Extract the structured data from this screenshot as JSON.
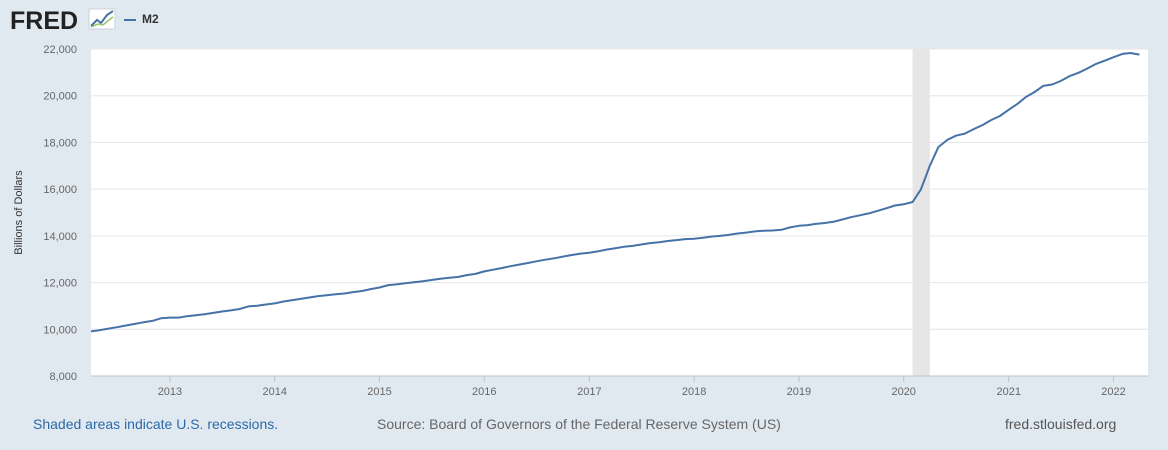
{
  "brand": {
    "name": "FRED",
    "logo_icon": "fred-trend-line-icon"
  },
  "legend": {
    "series_name": "M2",
    "color": "#4572a7"
  },
  "footer": {
    "recession_note": "Shaded areas indicate U.S. recessions.",
    "source": "Source: Board of Governors of the Federal Reserve System (US)",
    "site": "fred.stlouisfed.org"
  },
  "colors": {
    "background": "#e1e9f0",
    "plot_background": "#ffffff",
    "line": "#4572a7",
    "recession": "#e6e6e6"
  },
  "chart_data": {
    "type": "line",
    "title": "",
    "xlabel": "",
    "ylabel": "Billions of Dollars",
    "grid": true,
    "legend_position": "top-left",
    "xlim": [
      "2012-04-01",
      "2022-05-01"
    ],
    "ylim": [
      8000,
      22000
    ],
    "y_ticks": [
      8000,
      10000,
      12000,
      14000,
      16000,
      18000,
      20000,
      22000
    ],
    "y_tick_labels": [
      "8,000",
      "10,000",
      "12,000",
      "14,000",
      "16,000",
      "18,000",
      "20,000",
      "22,000"
    ],
    "x_ticks": [
      "2013-01-01",
      "2014-01-01",
      "2015-01-01",
      "2016-01-01",
      "2017-01-01",
      "2018-01-01",
      "2019-01-01",
      "2020-01-01",
      "2021-01-01",
      "2022-01-01"
    ],
    "x_tick_labels": [
      "2013",
      "2014",
      "2015",
      "2016",
      "2017",
      "2018",
      "2019",
      "2020",
      "2021",
      "2022"
    ],
    "recessions": [
      {
        "start": "2020-02-01",
        "end": "2020-04-01"
      }
    ],
    "series": [
      {
        "name": "M2",
        "color": "#4572a7",
        "points": [
          [
            "2012-04-01",
            9910
          ],
          [
            "2012-05-01",
            9960
          ],
          [
            "2012-06-01",
            10030
          ],
          [
            "2012-07-01",
            10090
          ],
          [
            "2012-08-01",
            10160
          ],
          [
            "2012-09-01",
            10230
          ],
          [
            "2012-10-01",
            10300
          ],
          [
            "2012-11-01",
            10360
          ],
          [
            "2012-12-01",
            10470
          ],
          [
            "2013-01-01",
            10500
          ],
          [
            "2013-02-01",
            10500
          ],
          [
            "2013-03-01",
            10560
          ],
          [
            "2013-04-01",
            10600
          ],
          [
            "2013-05-01",
            10640
          ],
          [
            "2013-06-01",
            10700
          ],
          [
            "2013-07-01",
            10760
          ],
          [
            "2013-08-01",
            10810
          ],
          [
            "2013-09-01",
            10870
          ],
          [
            "2013-10-01",
            10980
          ],
          [
            "2013-11-01",
            11010
          ],
          [
            "2013-12-01",
            11060
          ],
          [
            "2014-01-01",
            11110
          ],
          [
            "2014-02-01",
            11190
          ],
          [
            "2014-03-01",
            11240
          ],
          [
            "2014-04-01",
            11300
          ],
          [
            "2014-05-01",
            11360
          ],
          [
            "2014-06-01",
            11420
          ],
          [
            "2014-07-01",
            11460
          ],
          [
            "2014-08-01",
            11500
          ],
          [
            "2014-09-01",
            11530
          ],
          [
            "2014-10-01",
            11590
          ],
          [
            "2014-11-01",
            11640
          ],
          [
            "2014-12-01",
            11720
          ],
          [
            "2015-01-01",
            11790
          ],
          [
            "2015-02-01",
            11890
          ],
          [
            "2015-03-01",
            11920
          ],
          [
            "2015-04-01",
            11970
          ],
          [
            "2015-05-01",
            12010
          ],
          [
            "2015-06-01",
            12060
          ],
          [
            "2015-07-01",
            12110
          ],
          [
            "2015-08-01",
            12160
          ],
          [
            "2015-09-01",
            12210
          ],
          [
            "2015-10-01",
            12240
          ],
          [
            "2015-11-01",
            12320
          ],
          [
            "2015-12-01",
            12370
          ],
          [
            "2016-01-01",
            12480
          ],
          [
            "2016-02-01",
            12550
          ],
          [
            "2016-03-01",
            12620
          ],
          [
            "2016-04-01",
            12700
          ],
          [
            "2016-05-01",
            12770
          ],
          [
            "2016-06-01",
            12840
          ],
          [
            "2016-07-01",
            12910
          ],
          [
            "2016-08-01",
            12980
          ],
          [
            "2016-09-01",
            13040
          ],
          [
            "2016-10-01",
            13110
          ],
          [
            "2016-11-01",
            13180
          ],
          [
            "2016-12-01",
            13240
          ],
          [
            "2017-01-01",
            13280
          ],
          [
            "2017-02-01",
            13340
          ],
          [
            "2017-03-01",
            13410
          ],
          [
            "2017-04-01",
            13470
          ],
          [
            "2017-05-01",
            13530
          ],
          [
            "2017-06-01",
            13570
          ],
          [
            "2017-07-01",
            13630
          ],
          [
            "2017-08-01",
            13690
          ],
          [
            "2017-09-01",
            13730
          ],
          [
            "2017-10-01",
            13780
          ],
          [
            "2017-11-01",
            13820
          ],
          [
            "2017-12-01",
            13860
          ],
          [
            "2018-01-01",
            13880
          ],
          [
            "2018-02-01",
            13920
          ],
          [
            "2018-03-01",
            13970
          ],
          [
            "2018-04-01",
            14000
          ],
          [
            "2018-05-01",
            14040
          ],
          [
            "2018-06-01",
            14100
          ],
          [
            "2018-07-01",
            14140
          ],
          [
            "2018-08-01",
            14190
          ],
          [
            "2018-09-01",
            14220
          ],
          [
            "2018-10-01",
            14230
          ],
          [
            "2018-11-01",
            14260
          ],
          [
            "2018-12-01",
            14360
          ],
          [
            "2019-01-01",
            14430
          ],
          [
            "2019-02-01",
            14460
          ],
          [
            "2019-03-01",
            14510
          ],
          [
            "2019-04-01",
            14550
          ],
          [
            "2019-05-01",
            14600
          ],
          [
            "2019-06-01",
            14700
          ],
          [
            "2019-07-01",
            14800
          ],
          [
            "2019-08-01",
            14880
          ],
          [
            "2019-09-01",
            14960
          ],
          [
            "2019-10-01",
            15070
          ],
          [
            "2019-11-01",
            15180
          ],
          [
            "2019-12-01",
            15300
          ],
          [
            "2020-01-01",
            15350
          ],
          [
            "2020-02-01",
            15450
          ],
          [
            "2020-03-01",
            15990
          ],
          [
            "2020-04-01",
            17000
          ],
          [
            "2020-05-01",
            17800
          ],
          [
            "2020-06-01",
            18110
          ],
          [
            "2020-07-01",
            18290
          ],
          [
            "2020-08-01",
            18380
          ],
          [
            "2020-09-01",
            18570
          ],
          [
            "2020-10-01",
            18740
          ],
          [
            "2020-11-01",
            18960
          ],
          [
            "2020-12-01",
            19130
          ],
          [
            "2021-01-01",
            19400
          ],
          [
            "2021-02-01",
            19660
          ],
          [
            "2021-03-01",
            19940
          ],
          [
            "2021-04-01",
            20160
          ],
          [
            "2021-05-01",
            20420
          ],
          [
            "2021-06-01",
            20480
          ],
          [
            "2021-07-01",
            20630
          ],
          [
            "2021-08-01",
            20840
          ],
          [
            "2021-09-01",
            20980
          ],
          [
            "2021-10-01",
            21160
          ],
          [
            "2021-11-01",
            21360
          ],
          [
            "2021-12-01",
            21500
          ],
          [
            "2022-01-01",
            21650
          ],
          [
            "2022-02-01",
            21790
          ],
          [
            "2022-03-01",
            21830
          ],
          [
            "2022-04-01",
            21760
          ]
        ]
      }
    ]
  }
}
